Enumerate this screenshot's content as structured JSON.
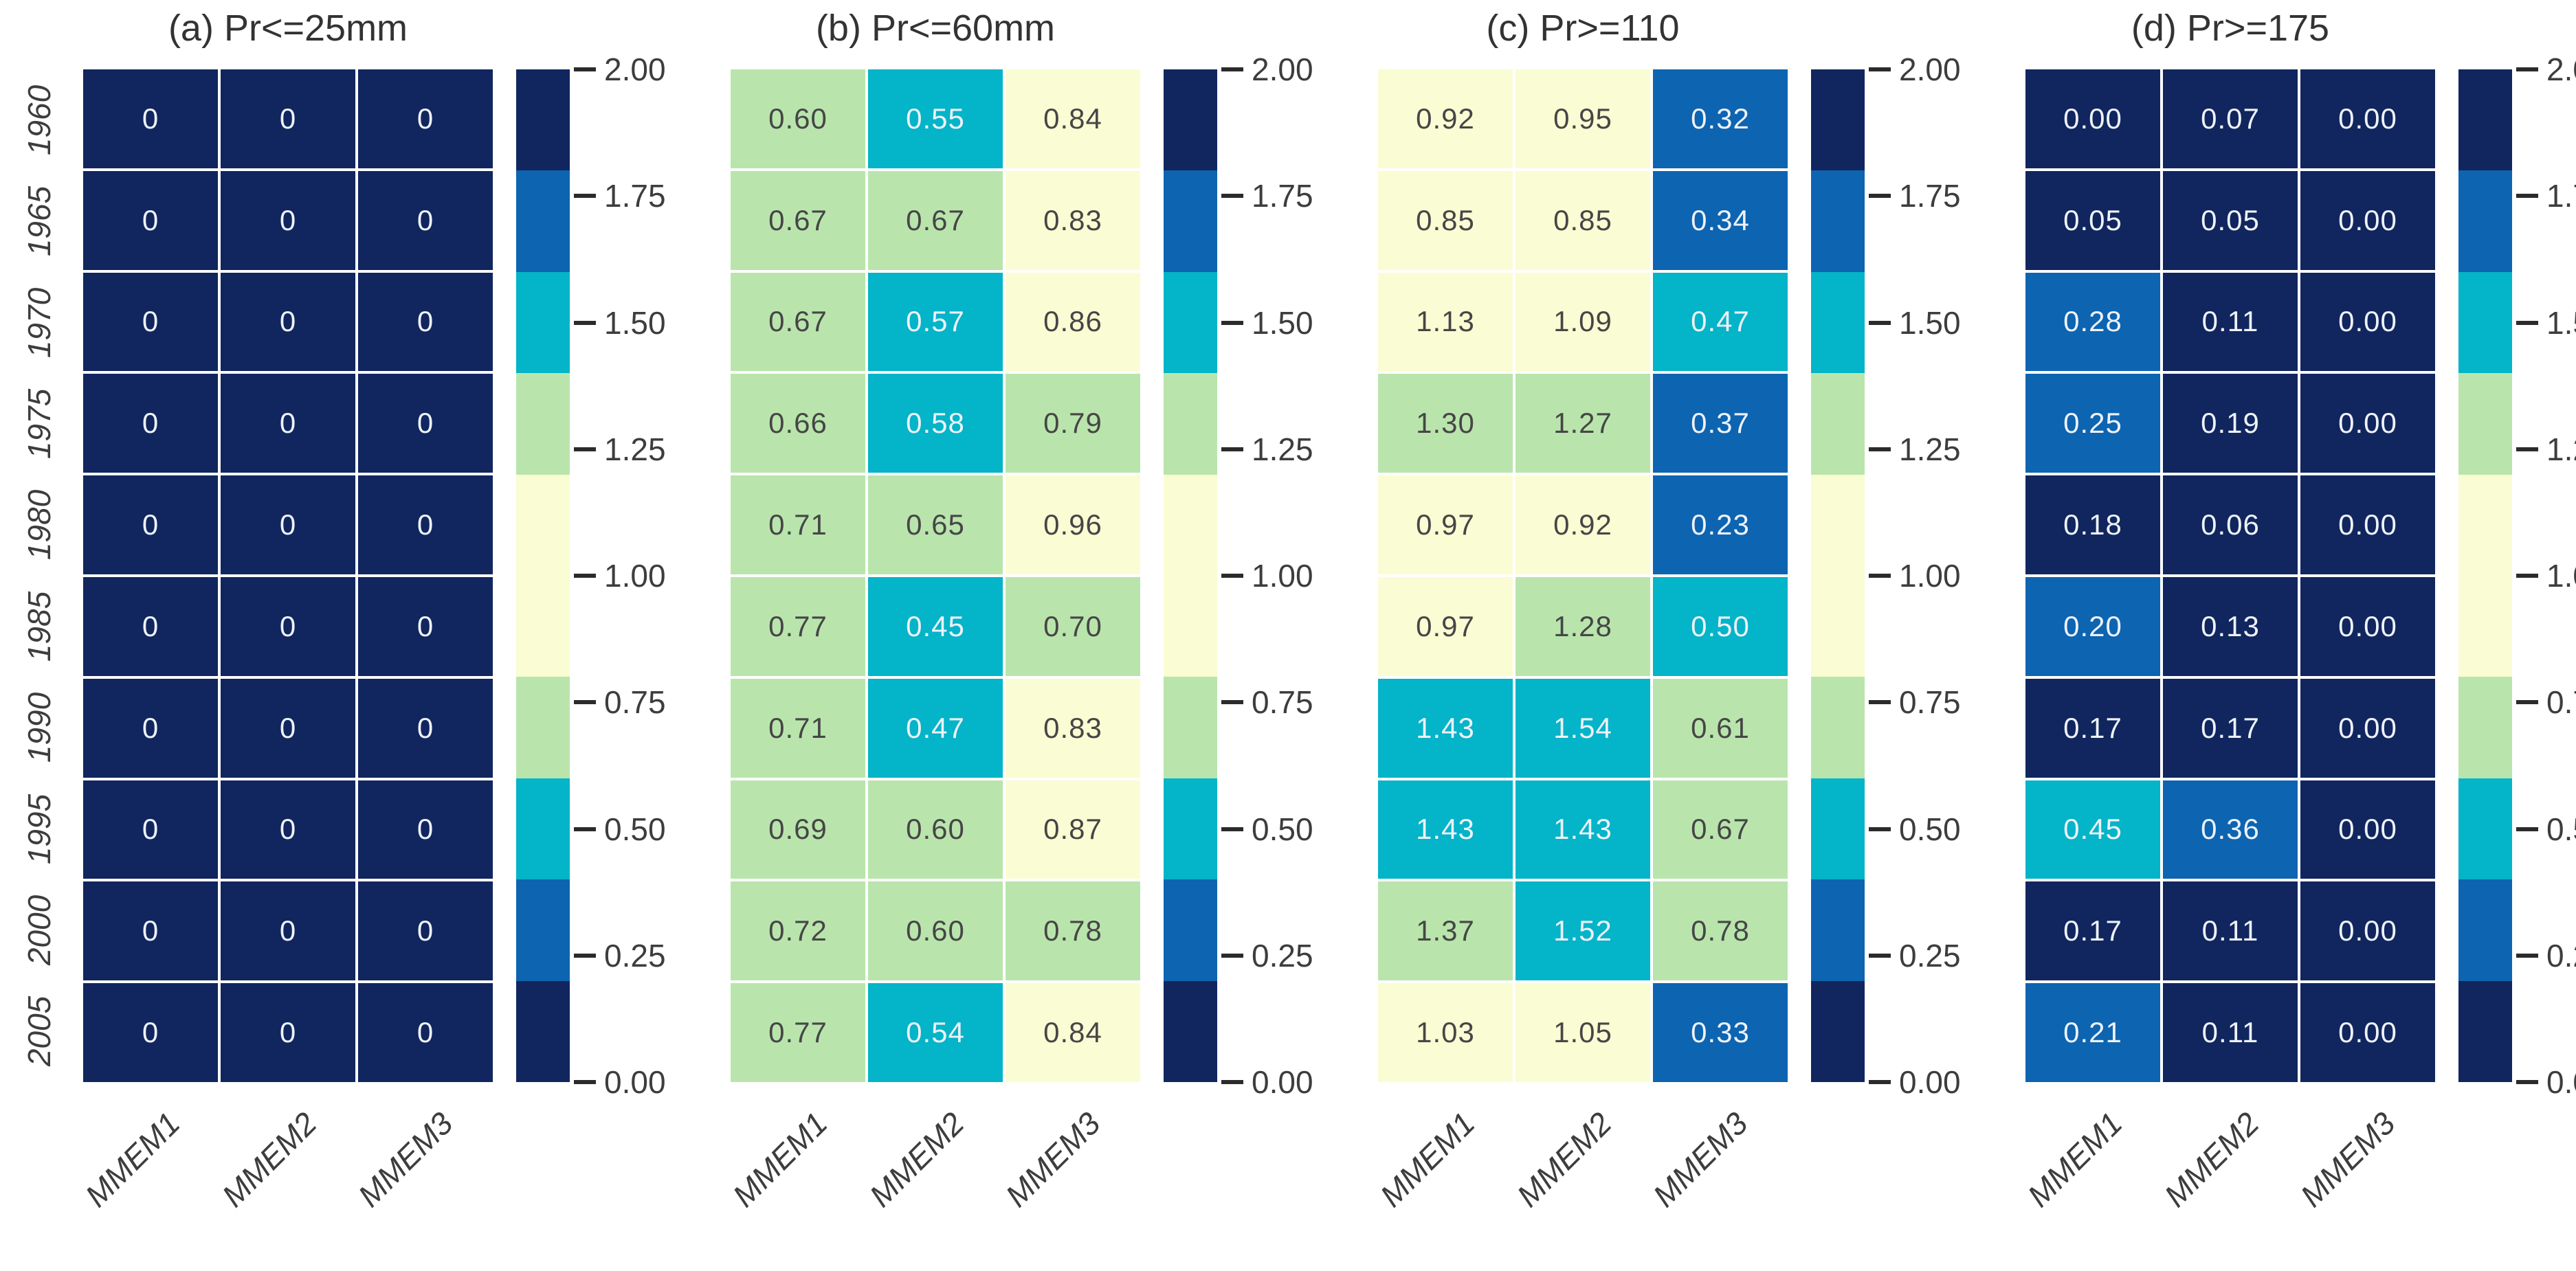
{
  "figure": {
    "background": "#ffffff",
    "palette": {
      "navy": "#11265e",
      "blue": "#0d64b1",
      "cyan": "#04b4c8",
      "green": "#b9e5ac",
      "cream": "#fafcd3",
      "cell_text_light": "#eef2f8",
      "cell_text_dark": "#464646",
      "axis_text": "#3d3d3d"
    },
    "colorbar": {
      "vmin": 0.0,
      "vmax": 2.0,
      "boundaries": [
        0.0,
        0.2,
        0.4,
        0.6,
        0.8,
        1.2,
        1.4,
        1.6,
        1.8,
        2.0
      ],
      "segment_colors": [
        "navy",
        "blue",
        "cyan",
        "green",
        "cream",
        "green",
        "cyan",
        "blue",
        "navy"
      ],
      "tick_labels_top_to_bottom": [
        "2.00",
        "1.75",
        "1.50",
        "1.25",
        "1.00",
        "0.75",
        "0.50",
        "0.25",
        "0.00"
      ]
    }
  },
  "chart_data": [
    {
      "type": "heatmap",
      "title": "(a) Pr<=25mm",
      "columns": [
        "MMEM1",
        "MMEM2",
        "MMEM3"
      ],
      "rows": [
        "1960",
        "1965",
        "1970",
        "1975",
        "1980",
        "1985",
        "1990",
        "1995",
        "2000",
        "2005"
      ],
      "values": [
        [
          "0",
          "0",
          "0"
        ],
        [
          "0",
          "0",
          "0"
        ],
        [
          "0",
          "0",
          "0"
        ],
        [
          "0",
          "0",
          "0"
        ],
        [
          "0",
          "0",
          "0"
        ],
        [
          "0",
          "0",
          "0"
        ],
        [
          "0",
          "0",
          "0"
        ],
        [
          "0",
          "0",
          "0"
        ],
        [
          "0",
          "0",
          "0"
        ],
        [
          "0",
          "0",
          "0"
        ]
      ]
    },
    {
      "type": "heatmap",
      "title": "(b) Pr<=60mm",
      "columns": [
        "MMEM1",
        "MMEM2",
        "MMEM3"
      ],
      "rows": [
        "1960",
        "1965",
        "1970",
        "1975",
        "1980",
        "1985",
        "1990",
        "1995",
        "2000",
        "2005"
      ],
      "values": [
        [
          "0.60",
          "0.55",
          "0.84"
        ],
        [
          "0.67",
          "0.67",
          "0.83"
        ],
        [
          "0.67",
          "0.57",
          "0.86"
        ],
        [
          "0.66",
          "0.58",
          "0.79"
        ],
        [
          "0.71",
          "0.65",
          "0.96"
        ],
        [
          "0.77",
          "0.45",
          "0.70"
        ],
        [
          "0.71",
          "0.47",
          "0.83"
        ],
        [
          "0.69",
          "0.60",
          "0.87"
        ],
        [
          "0.72",
          "0.60",
          "0.78"
        ],
        [
          "0.77",
          "0.54",
          "0.84"
        ]
      ]
    },
    {
      "type": "heatmap",
      "title": "(c) Pr>=110",
      "columns": [
        "MMEM1",
        "MMEM2",
        "MMEM3"
      ],
      "rows": [
        "1960",
        "1965",
        "1970",
        "1975",
        "1980",
        "1985",
        "1990",
        "1995",
        "2000",
        "2005"
      ],
      "values": [
        [
          "0.92",
          "0.95",
          "0.32"
        ],
        [
          "0.85",
          "0.85",
          "0.34"
        ],
        [
          "1.13",
          "1.09",
          "0.47"
        ],
        [
          "1.30",
          "1.27",
          "0.37"
        ],
        [
          "0.97",
          "0.92",
          "0.23"
        ],
        [
          "0.97",
          "1.28",
          "0.50"
        ],
        [
          "1.43",
          "1.54",
          "0.61"
        ],
        [
          "1.43",
          "1.43",
          "0.67"
        ],
        [
          "1.37",
          "1.52",
          "0.78"
        ],
        [
          "1.03",
          "1.05",
          "0.33"
        ]
      ]
    },
    {
      "type": "heatmap",
      "title": "(d) Pr>=175",
      "columns": [
        "MMEM1",
        "MMEM2",
        "MMEM3"
      ],
      "rows": [
        "1960",
        "1965",
        "1970",
        "1975",
        "1980",
        "1985",
        "1990",
        "1995",
        "2000",
        "2005"
      ],
      "values": [
        [
          "0.00",
          "0.07",
          "0.00"
        ],
        [
          "0.05",
          "0.05",
          "0.00"
        ],
        [
          "0.28",
          "0.11",
          "0.00"
        ],
        [
          "0.25",
          "0.19",
          "0.00"
        ],
        [
          "0.18",
          "0.06",
          "0.00"
        ],
        [
          "0.20",
          "0.13",
          "0.00"
        ],
        [
          "0.17",
          "0.17",
          "0.00"
        ],
        [
          "0.45",
          "0.36",
          "0.00"
        ],
        [
          "0.17",
          "0.11",
          "0.00"
        ],
        [
          "0.21",
          "0.11",
          "0.00"
        ]
      ]
    }
  ]
}
